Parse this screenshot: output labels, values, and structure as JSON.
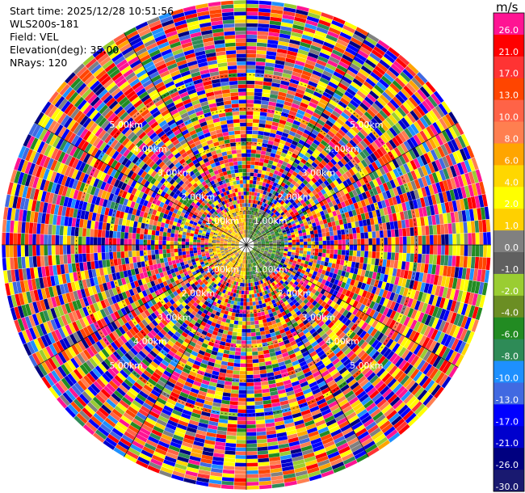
{
  "header": {
    "lines": [
      "Start time: 2025/12/28 10:51:56",
      "WLS200s-181",
      "Field: VEL",
      "Elevation(deg): 35.00",
      "NRays: 120"
    ]
  },
  "colorbar": {
    "unit": "m/s",
    "entries": [
      {
        "label": "26.0",
        "color": "#ff1493"
      },
      {
        "label": "21.0",
        "color": "#ff0000"
      },
      {
        "label": "17.0",
        "color": "#ff3333"
      },
      {
        "label": "13.0",
        "color": "#ff4500"
      },
      {
        "label": "10.0",
        "color": "#ff6347"
      },
      {
        "label": "8.0",
        "color": "#ff7f50"
      },
      {
        "label": "6.0",
        "color": "#ffa500"
      },
      {
        "label": "4.0",
        "color": "#ffd700"
      },
      {
        "label": "2.0",
        "color": "#ffff00"
      },
      {
        "label": "1.0",
        "color": "#ffd000"
      },
      {
        "label": "0.0",
        "color": "#808080"
      },
      {
        "label": "-1.0",
        "color": "#606060"
      },
      {
        "label": "-2.0",
        "color": "#9acd32"
      },
      {
        "label": "-4.0",
        "color": "#6b8e23"
      },
      {
        "label": "-6.0",
        "color": "#228b22"
      },
      {
        "label": "-8.0",
        "color": "#2e8b57"
      },
      {
        "label": "-10.0",
        "color": "#1e90ff"
      },
      {
        "label": "-13.0",
        "color": "#4169e1"
      },
      {
        "label": "-17.0",
        "color": "#0000ff"
      },
      {
        "label": "-21.0",
        "color": "#0000cd"
      },
      {
        "label": "-26.0",
        "color": "#000080"
      },
      {
        "label": "-30.0",
        "color": "#191970"
      }
    ]
  },
  "chart_data": {
    "type": "heatmap",
    "projection": "polar-ppi",
    "field": "VEL",
    "nrays": 120,
    "range_rings_km": [
      1,
      2,
      3,
      4,
      5
    ],
    "range_labels": [
      "1.00km",
      "2.00km",
      "3.00km",
      "4.00km",
      "5.00km"
    ],
    "max_range_km": 7.2,
    "value_range": [
      -30.0,
      26.0
    ],
    "near_field_km": 1.2,
    "near_field_pattern": "left half mostly 0 to 8 m/s (yellow/orange), right half mostly -1 to -8 m/s (green/olive)",
    "far_field_pattern": "noisy random velocities across full colormap beyond ~1.2 km",
    "grid": true,
    "legend": "right"
  }
}
